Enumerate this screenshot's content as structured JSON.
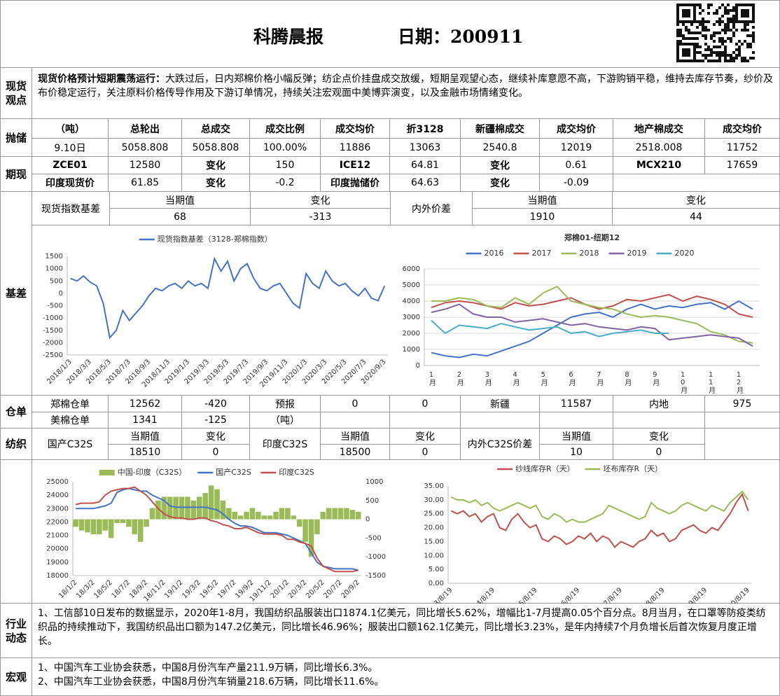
{
  "header": {
    "title": "科腾晨报",
    "date": "日期：200911"
  },
  "spot_view": {
    "label": "现货观点",
    "lead": "现货价格预计短期震荡运行：",
    "text": "大跌过后，日内郑棉价格小幅反弹；纺企点价挂盘成交放缓，短期呈观望心态，继续补库意愿不高，下游购销平稳，维持去库存节奏，纱价及布价稳定运行，关注原料价格传导作用及下游订单情况，持续关注宏观面中美博弈演变，以及金融市场情绪变化。"
  },
  "reserve": {
    "label": "抛储",
    "header": [
      "（吨）",
      "总轮出",
      "总成交",
      "成交比例",
      "成交均价",
      "折3128",
      "新疆棉成交",
      "成交均价",
      "地产棉成交",
      "成交均价"
    ],
    "row": [
      "9.10日",
      "5058.808",
      "5058.808",
      "100.00%",
      "11886",
      "13063",
      "2540.8",
      "12019",
      "2518.008",
      "11752"
    ]
  },
  "futures": {
    "label": "期现",
    "rows": [
      [
        "ZCE01",
        "12580",
        "变化",
        "150",
        "ICE12",
        "64.81",
        "变化",
        "0.61",
        "MCX210",
        "17659"
      ],
      [
        "印度现货价",
        "61.85",
        "变化",
        "-0.2",
        "印度抛储价",
        "64.63",
        "变化",
        "-0.09"
      ]
    ]
  },
  "basis": {
    "label": "基差",
    "spot_index": {
      "label": "现货指数基差",
      "headers": [
        "当期值",
        "变化"
      ],
      "values": [
        "68",
        "-313"
      ]
    },
    "domestic_foreign": {
      "label": "内外价差",
      "headers": [
        "当期值",
        "变化"
      ],
      "values": [
        "1910",
        "44"
      ]
    }
  },
  "warehouse": {
    "label": "仓单",
    "rows": [
      [
        "郑棉仓单",
        "12562",
        "-420",
        "预报",
        "0",
        "0",
        "新疆",
        "11587",
        "内地",
        "975"
      ],
      [
        "美棉仓单",
        "1341",
        "-125",
        "（吨）"
      ]
    ]
  },
  "textile": {
    "label": "纺织",
    "groups": [
      {
        "label": "国产C32S",
        "headers": [
          "当期值",
          "变化"
        ],
        "values": [
          "18510",
          "0"
        ]
      },
      {
        "label": "印度C32S",
        "headers": [
          "当期值",
          "变化"
        ],
        "values": [
          "18500",
          "0"
        ]
      },
      {
        "label": "内外C32S价差",
        "headers": [
          "当期值",
          "变化"
        ],
        "values": [
          "10",
          "0"
        ]
      }
    ]
  },
  "industry": {
    "label": "行业动态",
    "text": "1、工信部10日发布的数据显示，2020年1-8月，我国纺织品服装出口1874.1亿美元，同比增长5.62%，增幅比1-7月提高0.05个百分点。8月当月，在口罩等防疫类纺织品的持续推动下，我国纺织品出口额为147.2亿美元，同比增长46.96%；服装出口额162.1亿美元，同比增长3.23%，是年内持续7个月负增长后首次恢复月度正增长。"
  },
  "macro": {
    "label": "宏观",
    "items": [
      "1、中国汽车工业协会获悉，中国8月份汽车产量211.9万辆，同比增长6.3%。",
      "2、中国汽车工业协会获悉，中国8月份汽车销量218.6万辆，同比增长11.6%。"
    ]
  },
  "chart_data": [
    {
      "type": "line",
      "categories": [
        "2018/1/3",
        null,
        null,
        "2018/3/3",
        null,
        null,
        "2018/5/3",
        null,
        null,
        "2018/7/3",
        null,
        null,
        "2018/9/3",
        null,
        null,
        "2018/11/3",
        null,
        null,
        "2019/1/3",
        null,
        null,
        "2019/3/3",
        null,
        null,
        "2019/5/3",
        null,
        null,
        "2019/7/3",
        null,
        null,
        "2019/9/3",
        null,
        null,
        "2019/11/3",
        null,
        null,
        "2020/1/3",
        null,
        null,
        "2020/3/3",
        null,
        null,
        "2020/5/3",
        null,
        null,
        "2020/7/3",
        null,
        null,
        "2020/9/3"
      ],
      "series": [
        {
          "name": "现货指数基差（3128-郑棉指数）",
          "color": "#4472c4",
          "values": [
            600,
            500,
            700,
            450,
            300,
            -400,
            -1800,
            -1500,
            -700,
            -1100,
            -800,
            -500,
            -100,
            200,
            100,
            300,
            400,
            200,
            500,
            300,
            400,
            200,
            1400,
            900,
            1300,
            500,
            1000,
            1200,
            600,
            200,
            100,
            300,
            400,
            0,
            -400,
            -600,
            800,
            400,
            200,
            900,
            500,
            300,
            400,
            100,
            -100,
            200,
            -200,
            -300,
            300
          ]
        }
      ],
      "ylim": [
        -2500,
        1500
      ],
      "yticks": [
        -2500,
        -2000,
        -1500,
        -1000,
        -500,
        0,
        500,
        1000,
        1500
      ]
    },
    {
      "type": "line",
      "title": "郑棉01-纽期12",
      "categories": [
        "1月",
        null,
        "2月",
        null,
        "3月",
        null,
        "4月",
        null,
        "5月",
        null,
        "6月",
        null,
        "7月",
        null,
        "8月",
        null,
        "9月",
        null,
        "10月",
        null,
        "11月",
        null,
        "12月",
        null
      ],
      "series": [
        {
          "name": "2016",
          "color": "#4472c4",
          "values": [
            800,
            600,
            500,
            700,
            600,
            900,
            1200,
            1500,
            2000,
            2500,
            3000,
            3200,
            3300,
            3000,
            3500,
            3800,
            3500,
            3700,
            3600,
            3800,
            3900,
            3500,
            4000,
            3500
          ]
        },
        {
          "name": "2017",
          "color": "#c0504d",
          "values": [
            3600,
            3900,
            4000,
            3900,
            3700,
            3500,
            3900,
            3700,
            3800,
            4000,
            4200,
            3800,
            3500,
            3700,
            4100,
            4000,
            4200,
            4400,
            4000,
            4300,
            4100,
            3800,
            3200,
            3000
          ]
        },
        {
          "name": "2018",
          "color": "#9bbb59",
          "values": [
            4000,
            4000,
            4200,
            4100,
            3700,
            3600,
            4200,
            3800,
            4500,
            4900,
            4000,
            3800,
            3600,
            3500,
            3200,
            3000,
            3100,
            3000,
            2800,
            2600,
            2100,
            1900,
            1500,
            1400
          ]
        },
        {
          "name": "2019",
          "color": "#8064a2",
          "values": [
            3300,
            3500,
            3800,
            3200,
            3000,
            3000,
            2700,
            2800,
            2900,
            2700,
            2500,
            2600,
            2400,
            2300,
            2200,
            2400,
            2300,
            1600,
            1700,
            1800,
            1900,
            1800,
            1700,
            1200
          ]
        },
        {
          "name": "2020",
          "color": "#4bacc6",
          "values": [
            2800,
            2000,
            2500,
            2400,
            2300,
            2600,
            2400,
            2200,
            2300,
            2400,
            2000,
            2100,
            1800,
            2000,
            2100,
            2200,
            2000,
            2000,
            null,
            null,
            null,
            null,
            null,
            null
          ]
        }
      ],
      "ylim": [
        0,
        6000
      ],
      "yticks": [
        0,
        1000,
        2000,
        3000,
        4000,
        5000,
        6000
      ],
      "grid": true
    },
    {
      "type": "line",
      "categories": [
        "18/1/2",
        null,
        null,
        "18/3/2",
        null,
        null,
        "18/5/2",
        null,
        null,
        "18/7/2",
        null,
        null,
        "18/9/2",
        null,
        null,
        "18/11/2",
        null,
        null,
        "19/1/2",
        null,
        null,
        "19/3/2",
        null,
        null,
        "19/5/2",
        null,
        null,
        "19/7/2",
        null,
        null,
        "19/9/2",
        null,
        null,
        "19/11/2",
        null,
        null,
        "20/1/2",
        null,
        null,
        "20/3/2",
        null,
        null,
        "20/5/2",
        null,
        null,
        "20/7/2",
        null,
        null,
        "20/9/2"
      ],
      "series": [
        {
          "name": "中国-印度（C32S）",
          "type": "bar",
          "axis": "y2",
          "color": "#9bbb59",
          "values": [
            -200,
            -300,
            -350,
            -400,
            -400,
            -300,
            -500,
            -100,
            -100,
            -200,
            -400,
            -600,
            -200,
            300,
            500,
            600,
            600,
            600,
            600,
            600,
            500,
            600,
            700,
            900,
            800,
            500,
            300,
            200,
            100,
            200,
            300,
            200,
            100,
            100,
            200,
            300,
            300,
            100,
            -200,
            -600,
            -1000,
            -400,
            200,
            300,
            300,
            300,
            300,
            250,
            200
          ]
        },
        {
          "name": "国产C32S",
          "color": "#4472c4",
          "values": [
            23000,
            23000,
            23000,
            23000,
            23100,
            23200,
            23400,
            24200,
            24400,
            24500,
            24400,
            24300,
            24300,
            24000,
            23800,
            23600,
            23200,
            23100,
            23100,
            23100,
            23100,
            23100,
            23100,
            23000,
            22900,
            22600,
            22200,
            21900,
            21700,
            21700,
            21600,
            21400,
            21200,
            21200,
            21200,
            21100,
            21000,
            20800,
            20600,
            20400,
            19700,
            19000,
            18700,
            18600,
            18500,
            18500,
            18500,
            18500,
            18400
          ]
        },
        {
          "name": "印度C32S",
          "color": "#c0504d",
          "values": [
            23300,
            23400,
            23400,
            23400,
            23500,
            24000,
            24300,
            24400,
            24500,
            24500,
            24600,
            24300,
            24000,
            23500,
            23000,
            22600,
            22400,
            22300,
            22300,
            22200,
            22200,
            22300,
            22300,
            22100,
            22000,
            21800,
            21700,
            21500,
            21500,
            21600,
            21400,
            21200,
            21100,
            21100,
            21100,
            21000,
            20700,
            20700,
            20500,
            20400,
            20200,
            19300,
            18700,
            18500,
            18300,
            18300,
            18300,
            18300,
            18400
          ]
        }
      ],
      "ylim": [
        18000,
        25000
      ],
      "yticks": [
        18000,
        19000,
        20000,
        21000,
        22000,
        23000,
        24000,
        25000
      ],
      "y2lim": [
        -1500,
        1000
      ],
      "y2ticks": [
        -1500,
        -1000,
        -500,
        0,
        500,
        1000
      ]
    },
    {
      "type": "line",
      "categories": [
        "13/8/19",
        null,
        null,
        null,
        null,
        null,
        null,
        "14/8/19",
        null,
        null,
        null,
        null,
        null,
        null,
        "15/8/19",
        null,
        null,
        null,
        null,
        null,
        null,
        "16/8/19",
        null,
        null,
        null,
        null,
        null,
        null,
        "17/8/19",
        null,
        null,
        null,
        null,
        null,
        null,
        "18/8/19",
        null,
        null,
        null,
        null,
        null,
        null,
        "19/8/19",
        null,
        null,
        null,
        null,
        null,
        null,
        "20/8/19"
      ],
      "series": [
        {
          "name": "纱线库存R（天）",
          "color": "#c0504d",
          "values": [
            26,
            25,
            26,
            24,
            25,
            22,
            24,
            25,
            20,
            19,
            23,
            25,
            22,
            20,
            21,
            16,
            15,
            17,
            16,
            14,
            15,
            17,
            16,
            18,
            15,
            17,
            16,
            13,
            15,
            14,
            13,
            15,
            16,
            19,
            17,
            18,
            15,
            16,
            19,
            20,
            21,
            19,
            18,
            20,
            19,
            22,
            25,
            29,
            32,
            26
          ]
        },
        {
          "name": "坯布库存R（天）",
          "color": "#9bbb59",
          "values": [
            31,
            30,
            30,
            29,
            30,
            28,
            29,
            27,
            26,
            27,
            28,
            29,
            28,
            27,
            28,
            24,
            23,
            25,
            24,
            22,
            23,
            22,
            22,
            23,
            24,
            25,
            28,
            27,
            26,
            25,
            24,
            23,
            24,
            29,
            27,
            26,
            25,
            26,
            28,
            29,
            28,
            27,
            26,
            28,
            27,
            26,
            29,
            31,
            33,
            30
          ]
        }
      ],
      "ylim": [
        0,
        35
      ],
      "yticks": [
        {
          "value": 0,
          "label": "0.00"
        },
        {
          "value": 5,
          "label": "5.00"
        },
        {
          "value": 10,
          "label": "10.00"
        },
        {
          "value": 15,
          "label": "15.00"
        },
        {
          "value": 20,
          "label": "20.00"
        },
        {
          "value": 25,
          "label": "25.00"
        },
        {
          "value": 30,
          "label": "30.00"
        },
        {
          "value": 35,
          "label": "35.00"
        }
      ]
    }
  ]
}
